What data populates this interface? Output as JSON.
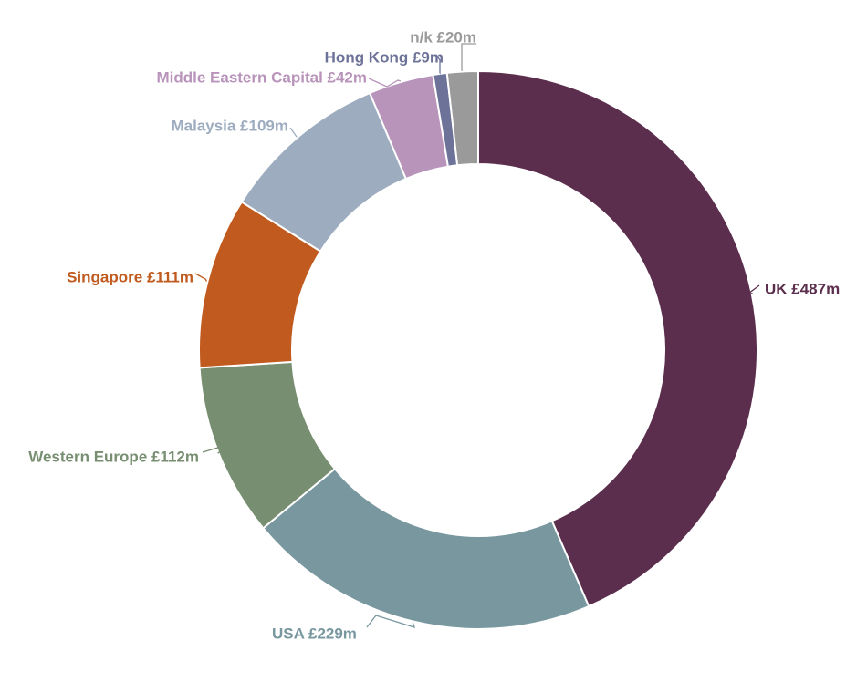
{
  "chart_data": {
    "type": "pie",
    "variant": "donut",
    "title": "",
    "start_angle_deg": 0,
    "direction": "clockwise",
    "slices": [
      {
        "label": "UK £487m",
        "name": "UK",
        "value": 487,
        "color": "#5c2e4d",
        "label_side": "right"
      },
      {
        "label": "USA £229m",
        "name": "USA",
        "value": 229,
        "color": "#78979f",
        "label_side": "bottom-left"
      },
      {
        "label": "Western Europe £112m",
        "name": "Western Europe",
        "value": 112,
        "color": "#778e71",
        "label_side": "left"
      },
      {
        "label": "Singapore £111m",
        "name": "Singapore",
        "value": 111,
        "color": "#c05a1e",
        "label_side": "left"
      },
      {
        "label": "Malaysia £109m",
        "name": "Malaysia",
        "value": 109,
        "color": "#9eacc0",
        "label_side": "left"
      },
      {
        "label": "Middle Eastern Capital £42m",
        "name": "Middle Eastern Capital",
        "value": 42,
        "color": "#b894bb",
        "label_side": "top-left"
      },
      {
        "label": "Hong Kong £9m",
        "name": "Hong Kong",
        "value": 9,
        "color": "#6d7299",
        "label_side": "top"
      },
      {
        "label": "n/k £20m",
        "name": "n/k",
        "value": 20,
        "color": "#9a9a9a",
        "label_side": "top"
      }
    ]
  }
}
